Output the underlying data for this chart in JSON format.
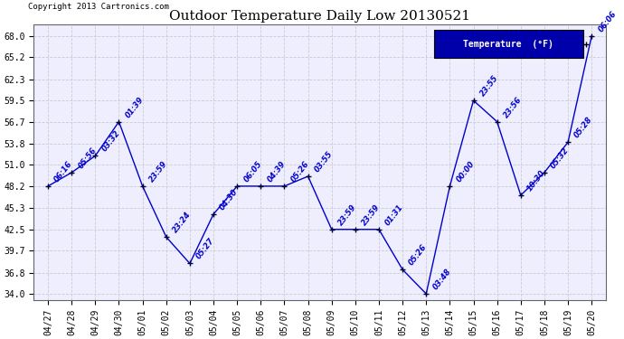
{
  "title": "Outdoor Temperature Daily Low 20130521",
  "copyright": "Copyright 2013 Cartronics.com",
  "legend_label": "Temperature  (°F)",
  "x_labels": [
    "04/27",
    "04/28",
    "04/29",
    "04/30",
    "05/01",
    "05/02",
    "05/03",
    "05/04",
    "05/05",
    "05/06",
    "05/07",
    "05/08",
    "05/09",
    "05/10",
    "05/11",
    "05/12",
    "05/13",
    "05/14",
    "05/15",
    "05/16",
    "05/17",
    "05/18",
    "05/19",
    "05/20"
  ],
  "y_values": [
    48.2,
    50.0,
    52.2,
    56.7,
    48.2,
    41.5,
    38.0,
    44.5,
    48.2,
    48.2,
    48.2,
    49.5,
    42.5,
    42.5,
    42.5,
    37.2,
    34.0,
    48.2,
    59.5,
    56.7,
    47.0,
    50.0,
    54.0,
    68.0
  ],
  "time_labels": [
    "06:16",
    "05:56",
    "03:32",
    "01:39",
    "23:59",
    "23:24",
    "05:27",
    "04:30",
    "06:05",
    "04:39",
    "05:26",
    "03:55",
    "23:59",
    "23:59",
    "01:31",
    "05:26",
    "03:48",
    "00:00",
    "23:55",
    "23:56",
    "10:30",
    "05:32",
    "05:28",
    "06:06"
  ],
  "ylim": [
    33.2,
    69.5
  ],
  "yticks": [
    34.0,
    36.8,
    39.7,
    42.5,
    45.3,
    48.2,
    51.0,
    53.8,
    56.7,
    59.5,
    62.3,
    65.2,
    68.0
  ],
  "ytick_labels": [
    "34.0",
    "36.8",
    "39.7",
    "42.5",
    "45.3",
    "48.2",
    "51.0",
    "53.8",
    "56.7",
    "59.5",
    "62.3",
    "65.2",
    "68.0"
  ],
  "line_color": "#0000CC",
  "marker_color": "#000033",
  "grid_color": "#cccccc",
  "bg_color": "#ffffff",
  "plot_bg_color": "#eeeeff",
  "title_fontsize": 11,
  "tick_fontsize": 7,
  "annot_fontsize": 6,
  "legend_bg": "#0000AA",
  "legend_text_color": "#ffffff",
  "fig_width": 6.9,
  "fig_height": 3.75,
  "dpi": 100
}
